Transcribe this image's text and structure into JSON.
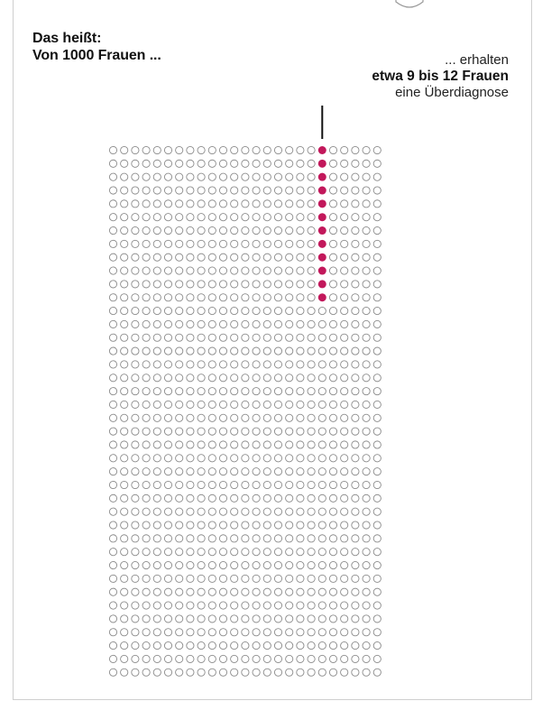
{
  "heading": {
    "line1": "Das heißt:",
    "line2": "Von 1000 Frauen ..."
  },
  "annotation": {
    "line1": "... erhalten",
    "line2": "etwa 9 bis 12 Frauen",
    "line3": "eine Überdiagnose"
  },
  "chart_data": {
    "type": "dot-matrix",
    "total": 1000,
    "columns": 25,
    "rows": 40,
    "highlighted": {
      "column": 20,
      "count": 12
    },
    "colors": {
      "highlight": "#c2185b",
      "outline": "#8a8a8a",
      "leader_line": "#111111"
    }
  }
}
